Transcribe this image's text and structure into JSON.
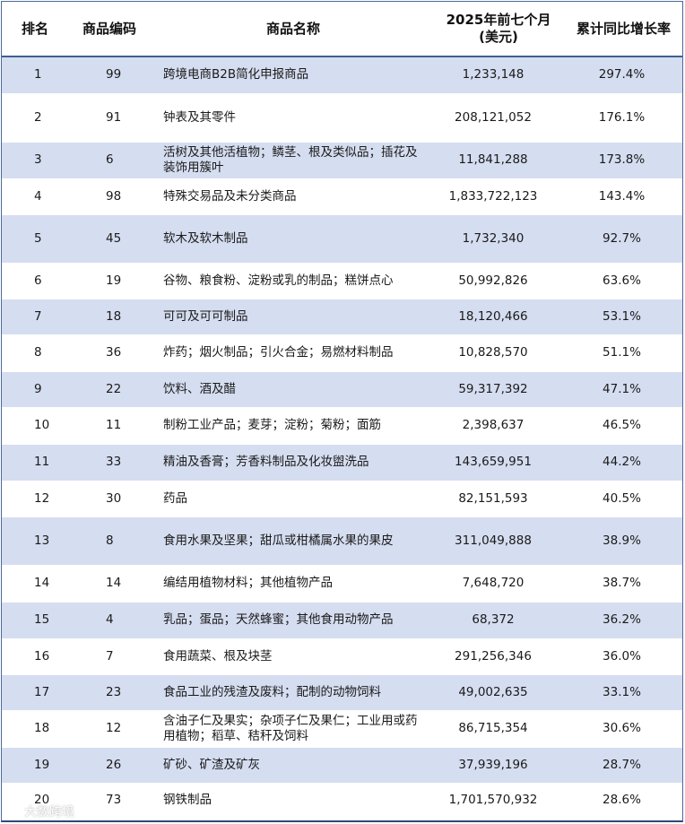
{
  "table": {
    "headers": {
      "rank": "排名",
      "code": "商品编码",
      "name": "商品名称",
      "value_line1": "2025年前七个月",
      "value_line2": "(美元)",
      "growth": "累计同比增长率"
    },
    "rows": [
      {
        "rank": "1",
        "code": "99",
        "name": "跨境电商B2B简化申报商品",
        "value": "1,233,148",
        "growth": "297.4%"
      },
      {
        "rank": "2",
        "code": "91",
        "name": "钟表及其零件",
        "value": "208,121,052",
        "growth": "176.1%"
      },
      {
        "rank": "3",
        "code": "6",
        "name": "活树及其他活植物；鳞茎、根及类似品；插花及装饰用簇叶",
        "value": "11,841,288",
        "growth": "173.8%"
      },
      {
        "rank": "4",
        "code": "98",
        "name": "特殊交易品及未分类商品",
        "value": "1,833,722,123",
        "growth": "143.4%"
      },
      {
        "rank": "5",
        "code": "45",
        "name": "软木及软木制品",
        "value": "1,732,340",
        "growth": "92.7%"
      },
      {
        "rank": "6",
        "code": "19",
        "name": "谷物、粮食粉、淀粉或乳的制品；糕饼点心",
        "value": "50,992,826",
        "growth": "63.6%"
      },
      {
        "rank": "7",
        "code": "18",
        "name": "可可及可可制品",
        "value": "18,120,466",
        "growth": "53.1%"
      },
      {
        "rank": "8",
        "code": "36",
        "name": "炸药；烟火制品；引火合金；易燃材料制品",
        "value": "10,828,570",
        "growth": "51.1%"
      },
      {
        "rank": "9",
        "code": "22",
        "name": "饮料、酒及醋",
        "value": "59,317,392",
        "growth": "47.1%"
      },
      {
        "rank": "10",
        "code": "11",
        "name": "制粉工业产品；麦芽；淀粉；菊粉；面筋",
        "value": "2,398,637",
        "growth": "46.5%"
      },
      {
        "rank": "11",
        "code": "33",
        "name": "精油及香膏；芳香料制品及化妆盥洗品",
        "value": "143,659,951",
        "growth": "44.2%"
      },
      {
        "rank": "12",
        "code": "30",
        "name": "药品",
        "value": "82,151,593",
        "growth": "40.5%"
      },
      {
        "rank": "13",
        "code": "8",
        "name": "食用水果及坚果；甜瓜或柑橘属水果的果皮",
        "value": "311,049,888",
        "growth": "38.9%"
      },
      {
        "rank": "14",
        "code": "14",
        "name": "编结用植物材料；其他植物产品",
        "value": "7,648,720",
        "growth": "38.7%"
      },
      {
        "rank": "15",
        "code": "4",
        "name": "乳品；蛋品；天然蜂蜜；其他食用动物产品",
        "value": "68,372",
        "growth": "36.2%"
      },
      {
        "rank": "16",
        "code": "7",
        "name": "食用蔬菜、根及块茎",
        "value": "291,256,346",
        "growth": "36.0%"
      },
      {
        "rank": "17",
        "code": "23",
        "name": "食品工业的残渣及废料；配制的动物饲料",
        "value": "49,002,635",
        "growth": "33.1%"
      },
      {
        "rank": "18",
        "code": "12",
        "name": "含油子仁及果实；杂项子仁及果仁；工业用或药用植物；稻草、秸秆及饲料",
        "value": "86,715,354",
        "growth": "30.6%"
      },
      {
        "rank": "19",
        "code": "26",
        "name": "矿砂、矿渣及矿灰",
        "value": "37,939,196",
        "growth": "28.7%"
      },
      {
        "rank": "20",
        "code": "73",
        "name": "钢铁制品",
        "value": "1,701,570,932",
        "growth": "28.6%"
      }
    ]
  },
  "watermark": {
    "text": "大数跨境",
    "logo_icon": "brand-swirl-icon"
  }
}
